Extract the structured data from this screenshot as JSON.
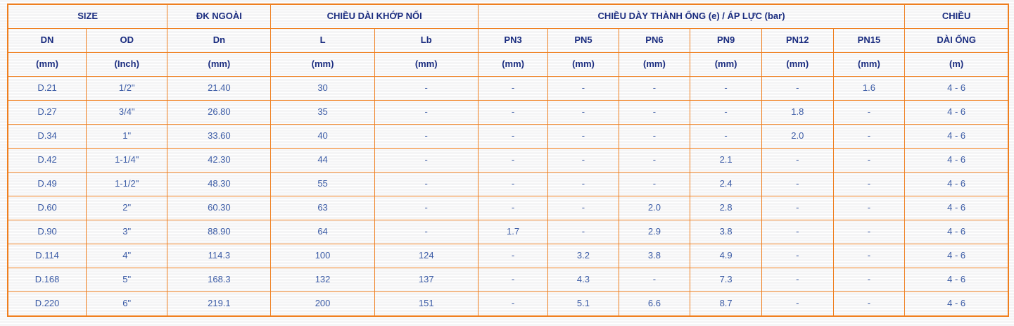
{
  "colors": {
    "border_orange": "#ef7f1f",
    "header_text_navy": "#1b2d80",
    "data_text_blue": "#3c5ca6",
    "page_background": "#f5f5f6",
    "stripe_white": "#ffffff"
  },
  "table": {
    "col_widths_pct": [
      7.85,
      8.1,
      10.35,
      10.35,
      10.35,
      7.0,
      7.05,
      7.15,
      7.15,
      7.15,
      7.15,
      10.35
    ],
    "header_rows": [
      [
        {
          "label": "SIZE",
          "colspan": 2
        },
        {
          "label": "ĐK NGOÀI",
          "colspan": 1
        },
        {
          "label": "CHIỀU DÀI KHỚP NỐI",
          "colspan": 2
        },
        {
          "label": "CHIỀU DÀY THÀNH ỐNG (e) / ÁP LỰC (bar)",
          "colspan": 6
        },
        {
          "label": "CHIỀU",
          "colspan": 1
        }
      ],
      [
        {
          "label": "DN",
          "colspan": 1
        },
        {
          "label": "OD",
          "colspan": 1
        },
        {
          "label": "Dn",
          "colspan": 1
        },
        {
          "label": "L",
          "colspan": 1
        },
        {
          "label": "Lb",
          "colspan": 1
        },
        {
          "label": "PN3",
          "colspan": 1
        },
        {
          "label": "PN5",
          "colspan": 1
        },
        {
          "label": "PN6",
          "colspan": 1
        },
        {
          "label": "PN9",
          "colspan": 1
        },
        {
          "label": "PN12",
          "colspan": 1
        },
        {
          "label": "PN15",
          "colspan": 1
        },
        {
          "label": "DÀI ỐNG",
          "colspan": 1
        }
      ],
      [
        {
          "label": "(mm)",
          "colspan": 1
        },
        {
          "label": "(Inch)",
          "colspan": 1
        },
        {
          "label": "(mm)",
          "colspan": 1
        },
        {
          "label": "(mm)",
          "colspan": 1
        },
        {
          "label": "(mm)",
          "colspan": 1
        },
        {
          "label": "(mm)",
          "colspan": 1
        },
        {
          "label": "(mm)",
          "colspan": 1
        },
        {
          "label": "(mm)",
          "colspan": 1
        },
        {
          "label": "(mm)",
          "colspan": 1
        },
        {
          "label": "(mm)",
          "colspan": 1
        },
        {
          "label": "(mm)",
          "colspan": 1
        },
        {
          "label": "(m)",
          "colspan": 1
        }
      ]
    ],
    "rows": [
      [
        "D.21",
        "1/2\"",
        "21.40",
        "30",
        "-",
        "-",
        "-",
        "-",
        "-",
        "-",
        "1.6",
        "4 - 6"
      ],
      [
        "D.27",
        "3/4\"",
        "26.80",
        "35",
        "-",
        "-",
        "-",
        "-",
        "-",
        "1.8",
        "-",
        "4 - 6"
      ],
      [
        "D.34",
        "1\"",
        "33.60",
        "40",
        "-",
        "-",
        "-",
        "-",
        "-",
        "2.0",
        "-",
        "4 - 6"
      ],
      [
        "D.42",
        "1-1/4\"",
        "42.30",
        "44",
        "-",
        "-",
        "-",
        "-",
        "2.1",
        "-",
        "-",
        "4 - 6"
      ],
      [
        "D.49",
        "1-1/2\"",
        "48.30",
        "55",
        "-",
        "-",
        "-",
        "-",
        "2.4",
        "-",
        "-",
        "4 - 6"
      ],
      [
        "D.60",
        "2\"",
        "60.30",
        "63",
        "-",
        "-",
        "-",
        "2.0",
        "2.8",
        "-",
        "-",
        "4 - 6"
      ],
      [
        "D.90",
        "3\"",
        "88.90",
        "64",
        "-",
        "1.7",
        "-",
        "2.9",
        "3.8",
        "-",
        "-",
        "4 - 6"
      ],
      [
        "D.114",
        "4\"",
        "114.3",
        "100",
        "124",
        "-",
        "3.2",
        "3.8",
        "4.9",
        "-",
        "-",
        "4 - 6"
      ],
      [
        "D.168",
        "5\"",
        "168.3",
        "132",
        "137",
        "-",
        "4.3",
        "-",
        "7.3",
        "-",
        "-",
        "4 - 6"
      ],
      [
        "D.220",
        "6\"",
        "219.1",
        "200",
        "151",
        "-",
        "5.1",
        "6.6",
        "8.7",
        "-",
        "-",
        "4 - 6"
      ]
    ],
    "column_keys": [
      "dn",
      "od",
      "dn-outer",
      "l",
      "lb",
      "pn3",
      "pn5",
      "pn6",
      "pn9",
      "pn12",
      "pn15",
      "chieu-dai-ong"
    ]
  }
}
